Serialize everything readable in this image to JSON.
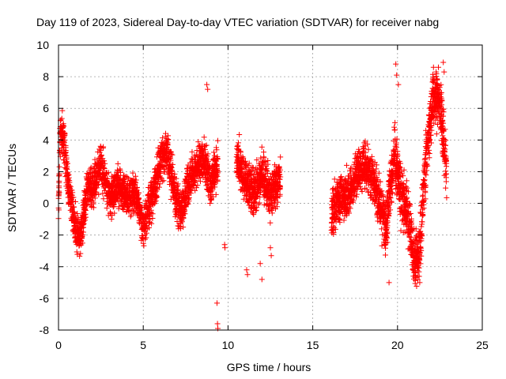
{
  "chart_data": {
    "type": "scatter",
    "title": "Day 119 of 2023, Sidereal Day-to-day VTEC variation (SDTVAR) for receiver nabg",
    "xlabel": "GPS time / hours",
    "ylabel": "SDTVAR / TECUs",
    "xlim": [
      0,
      25
    ],
    "ylim": [
      -8,
      10
    ],
    "xticks": [
      0,
      5,
      10,
      15,
      20,
      25
    ],
    "yticks": [
      -8,
      -6,
      -4,
      -2,
      0,
      2,
      4,
      6,
      8,
      10
    ],
    "xtick_labels": [
      "0",
      "5",
      "10",
      "15",
      "20",
      "25"
    ],
    "ytick_labels": [
      "-8",
      "-6",
      "-4",
      "-2",
      "0",
      "2",
      "4",
      "6",
      "8",
      "10"
    ],
    "grid": true,
    "marker": "+",
    "series": [
      {
        "name": "SDTVAR",
        "color": "#ff0000",
        "segments": [
          {
            "start": 0.0,
            "end": 9.4,
            "trend": [
              [
                0.0,
                0.0
              ],
              [
                0.1,
                4.6
              ],
              [
                0.35,
                3.8
              ],
              [
                0.55,
                1.0
              ],
              [
                0.8,
                -0.2
              ],
              [
                1.0,
                -1.6
              ],
              [
                1.3,
                -2.3
              ],
              [
                1.7,
                1.0
              ],
              [
                2.0,
                0.8
              ],
              [
                2.5,
                2.6
              ],
              [
                3.0,
                0.4
              ],
              [
                3.5,
                1.2
              ],
              [
                4.0,
                0.4
              ],
              [
                4.5,
                0.8
              ],
              [
                5.0,
                -1.4
              ],
              [
                5.6,
                0.6
              ],
              [
                6.0,
                2.6
              ],
              [
                6.4,
                3.4
              ],
              [
                6.8,
                1.0
              ],
              [
                7.2,
                -0.8
              ],
              [
                7.6,
                1.0
              ],
              [
                8.0,
                2.0
              ],
              [
                8.5,
                3.0
              ],
              [
                9.0,
                1.2
              ],
              [
                9.4,
                2.5
              ]
            ],
            "spread": 1.8,
            "step": 0.009,
            "seed": 11
          },
          {
            "start": 10.5,
            "end": 13.1,
            "trend": [
              [
                10.5,
                3.0
              ],
              [
                11.0,
                1.4
              ],
              [
                11.5,
                0.6
              ],
              [
                12.0,
                1.8
              ],
              [
                12.5,
                0.5
              ],
              [
                13.1,
                1.8
              ]
            ],
            "spread": 2.0,
            "step": 0.009,
            "seed": 23
          },
          {
            "start": 16.1,
            "end": 18.8,
            "trend": [
              [
                16.1,
                -0.8
              ],
              [
                16.5,
                0.2
              ],
              [
                17.0,
                0.4
              ],
              [
                17.5,
                1.6
              ],
              [
                18.0,
                2.4
              ],
              [
                18.5,
                1.6
              ],
              [
                18.8,
                1.0
              ]
            ],
            "spread": 2.0,
            "step": 0.008,
            "seed": 37
          },
          {
            "start": 18.8,
            "end": 22.9,
            "trend": [
              [
                18.8,
                0.5
              ],
              [
                19.3,
                -1.5
              ],
              [
                19.8,
                3.2
              ],
              [
                20.2,
                0.5
              ],
              [
                20.6,
                -0.5
              ],
              [
                21.0,
                -3.6
              ],
              [
                21.3,
                -3.0
              ],
              [
                21.7,
                3.2
              ],
              [
                22.1,
                6.6
              ],
              [
                22.5,
                6.8
              ],
              [
                22.9,
                1.8
              ]
            ],
            "spread": 2.6,
            "step": 0.008,
            "seed": 53
          }
        ],
        "outliers": [
          [
            8.75,
            7.5
          ],
          [
            8.8,
            7.2
          ],
          [
            9.35,
            -6.3
          ],
          [
            9.38,
            -7.6
          ],
          [
            9.4,
            -7.9
          ],
          [
            9.8,
            -2.6
          ],
          [
            9.82,
            -2.8
          ],
          [
            11.1,
            -4.2
          ],
          [
            11.15,
            -4.5
          ],
          [
            12.0,
            -4.8
          ],
          [
            11.9,
            -3.8
          ],
          [
            12.5,
            -2.8
          ],
          [
            12.55,
            -3.3
          ],
          [
            19.9,
            8.8
          ],
          [
            19.95,
            8.1
          ],
          [
            20.05,
            7.5
          ],
          [
            19.5,
            -5.0
          ],
          [
            22.7,
            8.9
          ],
          [
            22.75,
            8.3
          ],
          [
            17.0,
            2.4
          ],
          [
            18.1,
            3.2
          ],
          [
            16.6,
            -1.2
          ]
        ]
      }
    ]
  }
}
